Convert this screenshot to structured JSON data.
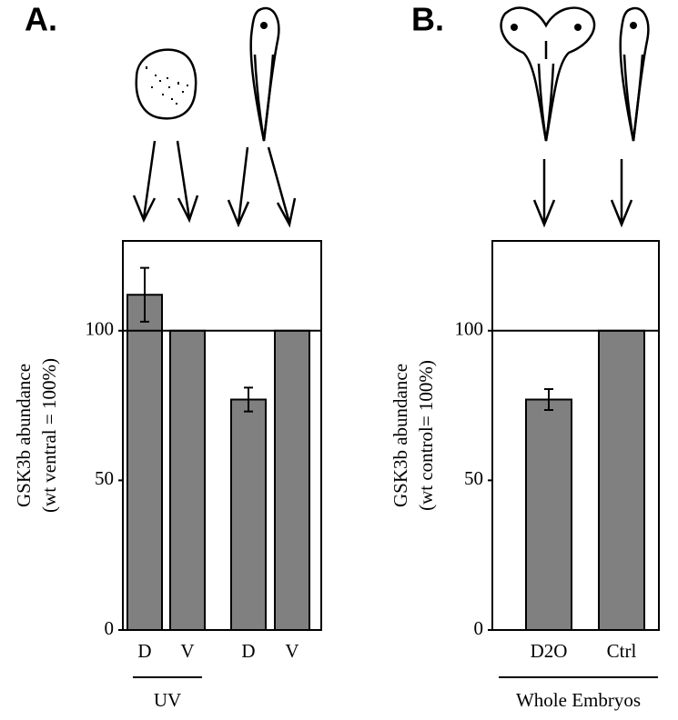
{
  "chart_data": [
    {
      "type": "bar",
      "panel_label": "A.",
      "ylabel": "GSK3b abundance",
      "ylabel_note": "(wt ventral = 100%)",
      "categories": [
        "D",
        "V",
        "D",
        "V"
      ],
      "values": [
        112,
        100,
        77,
        100
      ],
      "errors": [
        9,
        0,
        4,
        0
      ],
      "color": "#808080",
      "ylim": [
        0,
        130
      ],
      "yticks": [
        0,
        50,
        100
      ],
      "reference_line": 100,
      "group_label": "UV"
    },
    {
      "type": "bar",
      "panel_label": "B.",
      "ylabel": "GSK3b abundance",
      "ylabel_note": "(wt control= 100%)",
      "categories": [
        "D2O",
        "Ctrl"
      ],
      "values": [
        77,
        100
      ],
      "errors": [
        3.5,
        0
      ],
      "color": "#808080",
      "ylim": [
        0,
        130
      ],
      "yticks": [
        0,
        50,
        100
      ],
      "reference_line": 100,
      "group_label": "Whole Embryos"
    }
  ]
}
